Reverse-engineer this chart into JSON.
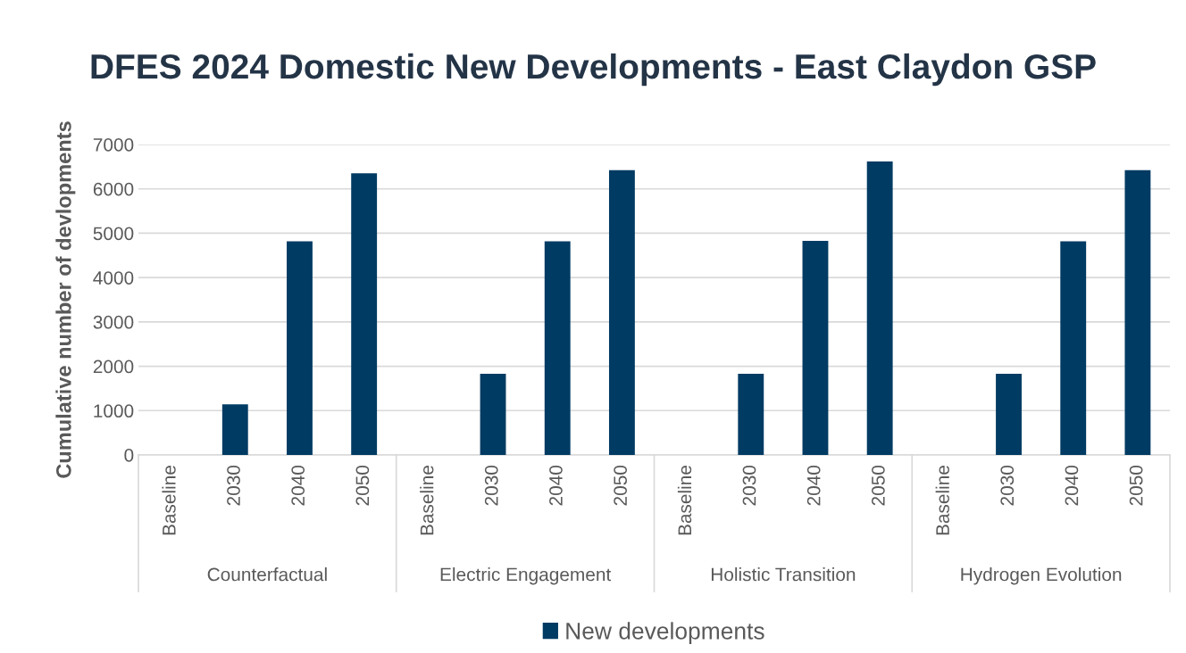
{
  "chart_data": {
    "type": "bar",
    "title": "DFES 2024 Domestic New Developments - East Claydon GSP",
    "ylabel": "Cumulative number of devlopments",
    "categories": [
      "Baseline",
      "2030",
      "2040",
      "2050",
      "Baseline",
      "2030",
      "2040",
      "2050",
      "Baseline",
      "2030",
      "2040",
      "2050",
      "Baseline",
      "2030",
      "2040",
      "2050"
    ],
    "series": [
      {
        "name": "New developments",
        "color": "#003b63",
        "values": [
          0,
          1140,
          4820,
          6350,
          0,
          1830,
          4820,
          6420,
          0,
          1830,
          4830,
          6620,
          0,
          1830,
          4820,
          6420
        ]
      }
    ],
    "annotations": [
      "Counterfactual",
      "Electric Engagement",
      "Holistic Transition",
      "Hydrogen Evolution"
    ],
    "ylim": [
      0,
      7000
    ],
    "yticks": [
      0,
      1000,
      2000,
      3000,
      4000,
      5000,
      6000,
      7000
    ],
    "grid": "y",
    "legend": "bottom"
  }
}
